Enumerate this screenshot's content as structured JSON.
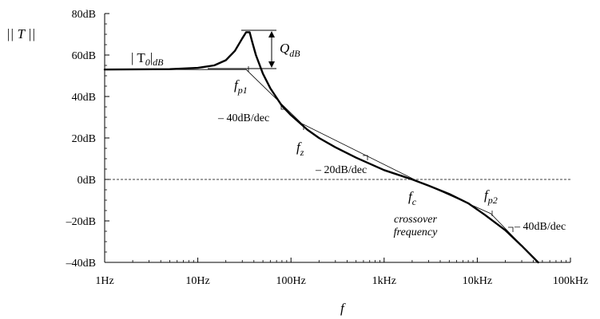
{
  "chart_data": {
    "type": "line",
    "title": "",
    "ylabel": "|| T ||",
    "xlabel": "f",
    "x_scale": "log",
    "xlim": [
      1,
      100000
    ],
    "ylim": [
      -40,
      80
    ],
    "x_ticks": [
      {
        "value": 1,
        "label": "1Hz"
      },
      {
        "value": 10,
        "label": "10Hz"
      },
      {
        "value": 100,
        "label": "100Hz"
      },
      {
        "value": 1000,
        "label": "1kHz"
      },
      {
        "value": 10000,
        "label": "10kHz"
      },
      {
        "value": 100000,
        "label": "100kHz"
      }
    ],
    "y_ticks": [
      {
        "value": 80,
        "label": "80dB"
      },
      {
        "value": 60,
        "label": "60dB"
      },
      {
        "value": 40,
        "label": "40dB"
      },
      {
        "value": 20,
        "label": "20dB"
      },
      {
        "value": 0,
        "label": "0dB"
      },
      {
        "value": -20,
        "label": "–20dB"
      },
      {
        "value": -40,
        "label": "–40dB"
      }
    ],
    "zero_line": "dashed",
    "series": [
      {
        "style": "thick",
        "points": [
          [
            1,
            53
          ],
          [
            5,
            53.2
          ],
          [
            10,
            53.8
          ],
          [
            15,
            55
          ],
          [
            20,
            57.5
          ],
          [
            25,
            62
          ],
          [
            30,
            68
          ],
          [
            33,
            71
          ],
          [
            36,
            71
          ],
          [
            38,
            67
          ],
          [
            42,
            60
          ],
          [
            50,
            51
          ],
          [
            60,
            44
          ],
          [
            80,
            35.5
          ],
          [
            100,
            31
          ],
          [
            150,
            24
          ],
          [
            200,
            20
          ],
          [
            300,
            15.5
          ],
          [
            500,
            10.5
          ],
          [
            1000,
            4.5
          ],
          [
            2000,
            0
          ],
          [
            3000,
            -3
          ],
          [
            5000,
            -7
          ],
          [
            8000,
            -11.5
          ],
          [
            12000,
            -17
          ],
          [
            20000,
            -24.5
          ],
          [
            30000,
            -32
          ],
          [
            45000,
            -40
          ]
        ]
      },
      {
        "style": "thin",
        "points": [
          [
            1,
            53
          ],
          [
            33,
            53
          ],
          [
            130,
            27
          ],
          [
            2100,
            0
          ],
          [
            14000,
            -16.5
          ],
          [
            45000,
            -40
          ]
        ]
      }
    ],
    "annotations": {
      "t0": "| T",
      "t0_sub": "0",
      "t0_tail": "|",
      "t0_db": "dB",
      "q_main": "Q",
      "q_sub": "dB",
      "fp1_main": "f",
      "fp1_sub": "p1",
      "slope1": "– 40dB/dec",
      "fz_main": "f",
      "fz_sub": "z",
      "slope2": "– 20dB/dec",
      "fc_main": "f",
      "fc_sub": "c",
      "crossover_1": "crossover",
      "crossover_2": "frequency",
      "fp2_main": "f",
      "fp2_sub": "p2",
      "slope3": "– 40dB/dec"
    }
  }
}
